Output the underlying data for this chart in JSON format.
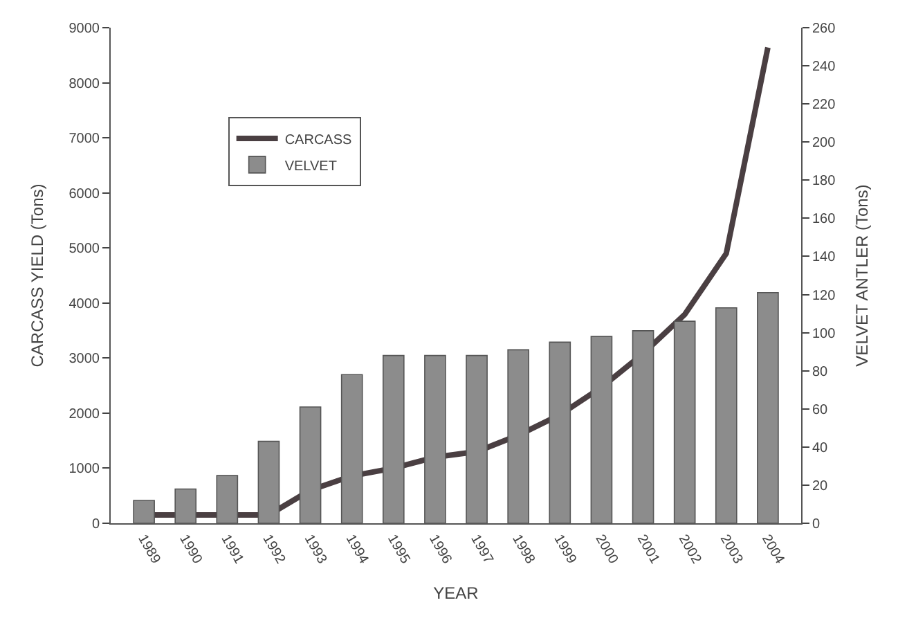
{
  "chart_data": {
    "type": "bar",
    "xlabel": "YEAR",
    "ylabel": "CARCASS YIELD (Tons)",
    "y2label": "VELVET ANTLER (Tons)",
    "categories": [
      "1989",
      "1990",
      "1991",
      "1992",
      "1993",
      "1994",
      "1995",
      "1996",
      "1997",
      "1998",
      "1999",
      "2000",
      "2001",
      "2002",
      "2003",
      "2004"
    ],
    "series": [
      {
        "name": "CARCASS",
        "type": "line",
        "color": "#4a3f42",
        "values": [
          150,
          150,
          150,
          150,
          600,
          860,
          1000,
          1200,
          1300,
          1600,
          1970,
          2470,
          3080,
          3790,
          4900,
          8640
        ]
      },
      {
        "name": "VELVET",
        "axis": "y2",
        "color": "#8c8c8c",
        "values": [
          12,
          18,
          25,
          43,
          61,
          78,
          88,
          88,
          88,
          91,
          95,
          98,
          101,
          106,
          113,
          121
        ]
      }
    ],
    "ylim": [
      0,
      9000
    ],
    "yticks": [
      0,
      1000,
      2000,
      3000,
      4000,
      5000,
      6000,
      7000,
      8000,
      9000
    ],
    "y2lim": [
      0,
      260
    ],
    "y2ticks": [
      0,
      20,
      40,
      60,
      80,
      100,
      120,
      140,
      160,
      180,
      200,
      220,
      240,
      260
    ],
    "legend": "top left"
  }
}
